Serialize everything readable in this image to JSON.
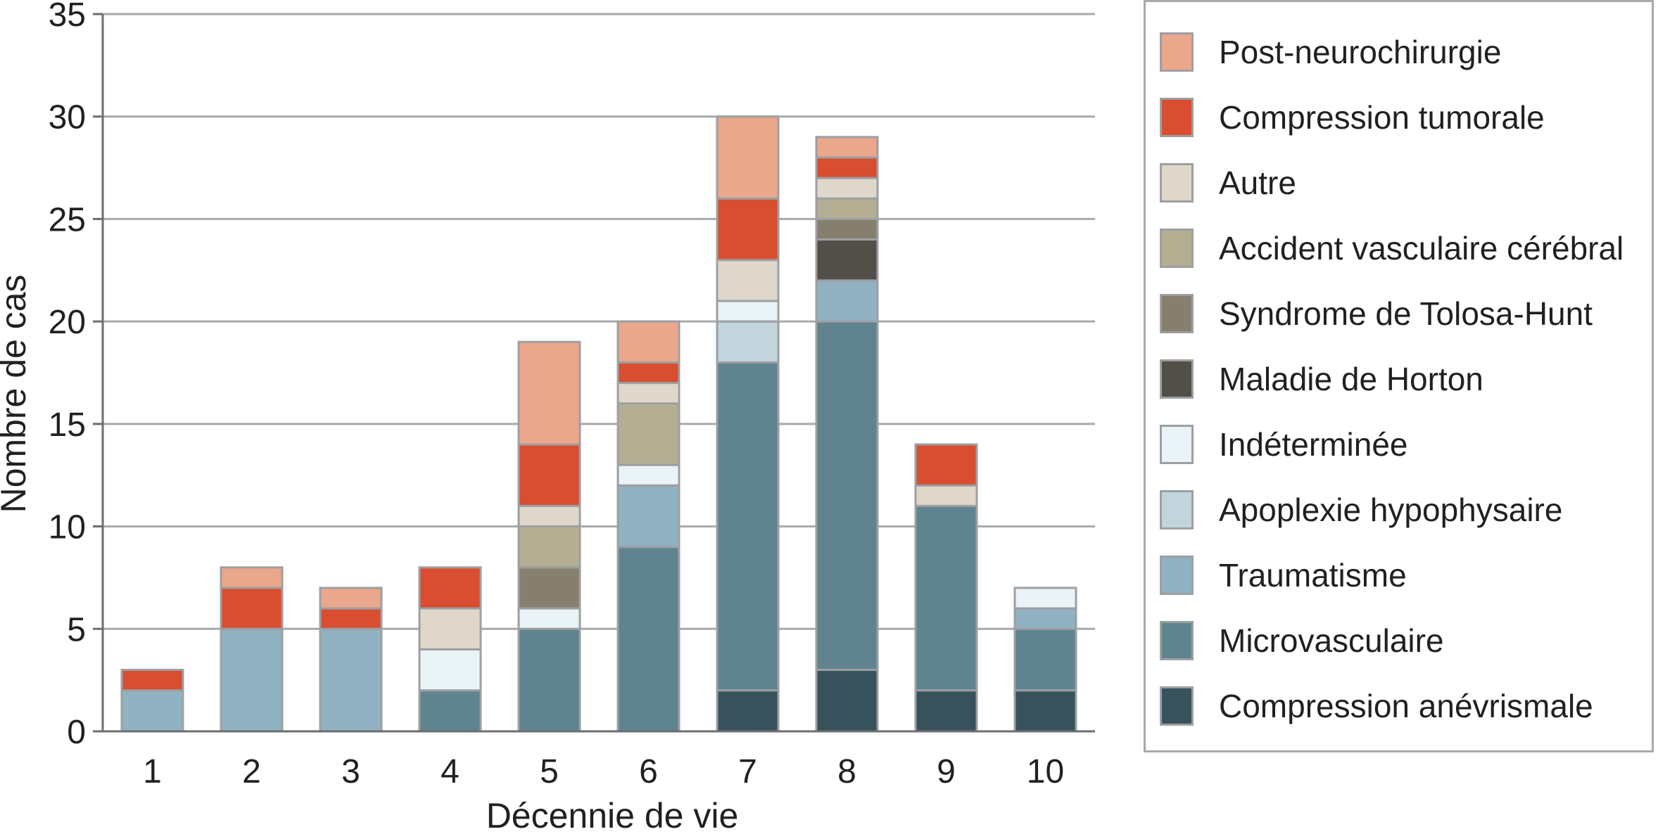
{
  "chart_data": {
    "type": "bar",
    "stacked": true,
    "xlabel": "Décennie de vie",
    "ylabel": "Nombre de cas",
    "ylim": [
      0,
      35
    ],
    "yticks": [
      0,
      5,
      10,
      15,
      20,
      25,
      30,
      35
    ],
    "categories": [
      "1",
      "2",
      "3",
      "4",
      "5",
      "6",
      "7",
      "8",
      "9",
      "10"
    ],
    "grid": "horizontal",
    "legend_position": "right",
    "series": [
      {
        "name": "Compression anévrismale",
        "color": "#37525a",
        "values": [
          0,
          0,
          0,
          0,
          0,
          0,
          2,
          3,
          2,
          2
        ]
      },
      {
        "name": "Microvasculaire",
        "color": "#5f8490",
        "values": [
          0,
          0,
          0,
          2,
          5,
          9,
          16,
          17,
          9,
          3
        ]
      },
      {
        "name": "Traumatisme",
        "color": "#91b2c2",
        "values": [
          2,
          5,
          5,
          0,
          0,
          3,
          0,
          2,
          0,
          1
        ]
      },
      {
        "name": "Apoplexie hypophysaire",
        "color": "#c2d5dc",
        "values": [
          0,
          0,
          0,
          0,
          0,
          0,
          2,
          0,
          0,
          0
        ]
      },
      {
        "name": "Indéterminée",
        "color": "#eaf3f5",
        "values": [
          0,
          0,
          0,
          2,
          1,
          1,
          1,
          0,
          0,
          1
        ]
      },
      {
        "name": "Maladie de Horton",
        "color": "#524f48",
        "values": [
          0,
          0,
          0,
          0,
          0,
          0,
          0,
          2,
          0,
          0
        ]
      },
      {
        "name": "Syndrome de Tolosa-Hunt",
        "color": "#877f6e",
        "values": [
          0,
          0,
          0,
          0,
          2,
          0,
          0,
          1,
          0,
          0
        ]
      },
      {
        "name": "Accident vasculaire cérébral",
        "color": "#b4ae93",
        "values": [
          0,
          0,
          0,
          0,
          2,
          3,
          0,
          1,
          0,
          0
        ]
      },
      {
        "name": "Autre",
        "color": "#dfd8ca",
        "values": [
          0,
          0,
          0,
          2,
          1,
          1,
          2,
          1,
          1,
          0
        ]
      },
      {
        "name": "Compression tumorale",
        "color": "#d94d30",
        "values": [
          1,
          2,
          1,
          2,
          3,
          1,
          3,
          1,
          2,
          0
        ]
      },
      {
        "name": "Post-neurochirurgie",
        "color": "#eaa78b",
        "values": [
          0,
          1,
          1,
          0,
          5,
          2,
          4,
          1,
          0,
          0
        ]
      }
    ]
  },
  "legend_order": [
    "Post-neurochirurgie",
    "Compression tumorale",
    "Autre",
    "Accident vasculaire cérébral",
    "Syndrome de Tolosa-Hunt",
    "Maladie de Horton",
    "Indéterminée",
    "Apoplexie hypophysaire",
    "Traumatisme",
    "Microvasculaire",
    "Compression anévrismale"
  ]
}
